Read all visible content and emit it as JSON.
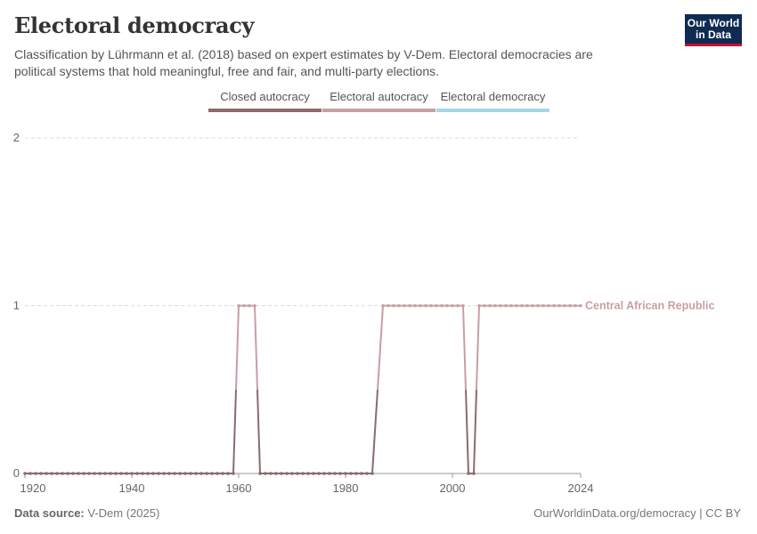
{
  "header": {
    "title": "Electoral democracy",
    "subtitle": "Classification by Lührmann et al. (2018) based on expert estimates by V-Dem. Electoral democracies are political systems that hold meaningful, free and fair, and multi-party elections.",
    "logo": "Our World in Data"
  },
  "footer": {
    "source_label": "Data source:",
    "source": "V-Dem (2025)",
    "url": "OurWorldinData.org/democracy | CC BY"
  },
  "chart_data": {
    "type": "line",
    "title": "Electoral democracy",
    "legend": [
      {
        "label": "Closed autocracy",
        "color": "#8c6b6e"
      },
      {
        "label": "Electoral autocracy",
        "color": "#c79fa3"
      },
      {
        "label": "Electoral democracy",
        "color": "#a6d7e5"
      }
    ],
    "legend_position": "top",
    "xlim": [
      1920,
      2024
    ],
    "ylim": [
      0,
      2
    ],
    "x_ticks": [
      "1920",
      "1940",
      "1960",
      "1980",
      "2000",
      "2024"
    ],
    "y_ticks": [
      "0",
      "1",
      "2"
    ],
    "grid": "horizontal dashed",
    "series": [
      {
        "name": "Central African Republic",
        "color": "#c79fa3",
        "points": [
          [
            1920,
            0
          ],
          [
            1921,
            0
          ],
          [
            1922,
            0
          ],
          [
            1923,
            0
          ],
          [
            1924,
            0
          ],
          [
            1925,
            0
          ],
          [
            1926,
            0
          ],
          [
            1927,
            0
          ],
          [
            1928,
            0
          ],
          [
            1929,
            0
          ],
          [
            1930,
            0
          ],
          [
            1931,
            0
          ],
          [
            1932,
            0
          ],
          [
            1933,
            0
          ],
          [
            1934,
            0
          ],
          [
            1935,
            0
          ],
          [
            1936,
            0
          ],
          [
            1937,
            0
          ],
          [
            1938,
            0
          ],
          [
            1939,
            0
          ],
          [
            1940,
            0
          ],
          [
            1941,
            0
          ],
          [
            1942,
            0
          ],
          [
            1943,
            0
          ],
          [
            1944,
            0
          ],
          [
            1945,
            0
          ],
          [
            1946,
            0
          ],
          [
            1947,
            0
          ],
          [
            1948,
            0
          ],
          [
            1949,
            0
          ],
          [
            1950,
            0
          ],
          [
            1951,
            0
          ],
          [
            1952,
            0
          ],
          [
            1953,
            0
          ],
          [
            1954,
            0
          ],
          [
            1955,
            0
          ],
          [
            1956,
            0
          ],
          [
            1957,
            0
          ],
          [
            1958,
            0
          ],
          [
            1959,
            0
          ],
          [
            1960,
            1
          ],
          [
            1961,
            1
          ],
          [
            1962,
            1
          ],
          [
            1963,
            1
          ],
          [
            1964,
            0
          ],
          [
            1965,
            0
          ],
          [
            1966,
            0
          ],
          [
            1967,
            0
          ],
          [
            1968,
            0
          ],
          [
            1969,
            0
          ],
          [
            1970,
            0
          ],
          [
            1971,
            0
          ],
          [
            1972,
            0
          ],
          [
            1973,
            0
          ],
          [
            1974,
            0
          ],
          [
            1975,
            0
          ],
          [
            1976,
            0
          ],
          [
            1977,
            0
          ],
          [
            1978,
            0
          ],
          [
            1979,
            0
          ],
          [
            1980,
            0
          ],
          [
            1981,
            0
          ],
          [
            1982,
            0
          ],
          [
            1983,
            0
          ],
          [
            1984,
            0
          ],
          [
            1985,
            0
          ],
          [
            1987,
            1
          ],
          [
            1988,
            1
          ],
          [
            1989,
            1
          ],
          [
            1990,
            1
          ],
          [
            1991,
            1
          ],
          [
            1992,
            1
          ],
          [
            1993,
            1
          ],
          [
            1994,
            1
          ],
          [
            1995,
            1
          ],
          [
            1996,
            1
          ],
          [
            1997,
            1
          ],
          [
            1998,
            1
          ],
          [
            1999,
            1
          ],
          [
            2000,
            1
          ],
          [
            2001,
            1
          ],
          [
            2002,
            1
          ],
          [
            2003,
            0
          ],
          [
            2004,
            0
          ],
          [
            2005,
            1
          ],
          [
            2006,
            1
          ],
          [
            2007,
            1
          ],
          [
            2008,
            1
          ],
          [
            2009,
            1
          ],
          [
            2010,
            1
          ],
          [
            2011,
            1
          ],
          [
            2012,
            1
          ],
          [
            2013,
            1
          ],
          [
            2014,
            1
          ],
          [
            2015,
            1
          ],
          [
            2016,
            1
          ],
          [
            2017,
            1
          ],
          [
            2018,
            1
          ],
          [
            2019,
            1
          ],
          [
            2020,
            1
          ],
          [
            2021,
            1
          ],
          [
            2022,
            1
          ],
          [
            2023,
            1
          ],
          [
            2024,
            1
          ]
        ]
      }
    ]
  }
}
